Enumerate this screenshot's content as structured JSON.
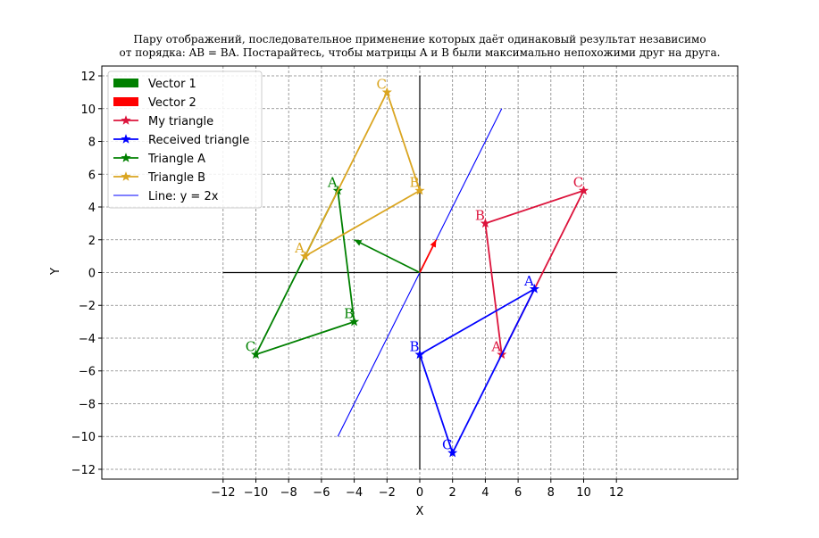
{
  "chart_data": {
    "type": "line",
    "title_lines": [
      "Пару отображений, последовательное применение которых даёт одинаковый результат независимо",
      "от порядка: AB = BA. Постарайтесь, чтобы матрицы A и B были максимально непохожими друг на друга."
    ],
    "xlabel": "X",
    "ylabel": "Y",
    "xlim": [
      -19.4,
      19.4
    ],
    "ylim": [
      -12.6,
      12.6
    ],
    "xticks": [
      -12,
      -10,
      -8,
      -6,
      -4,
      -2,
      0,
      2,
      4,
      6,
      8,
      10,
      12
    ],
    "yticks": [
      -12,
      -10,
      -8,
      -6,
      -4,
      -2,
      0,
      2,
      4,
      6,
      8,
      10,
      12
    ],
    "grid": true,
    "legend_position": "top-left",
    "axes_cross": {
      "x_from": -12,
      "x_to": 12,
      "y_from": -12,
      "y_to": 12
    },
    "vectors": [
      {
        "name": "Vector 1",
        "color": "#008000",
        "from": [
          0,
          0
        ],
        "to": [
          -4,
          2
        ]
      },
      {
        "name": "Vector 2",
        "color": "#ff0000",
        "from": [
          0,
          0
        ],
        "to": [
          1,
          2
        ]
      }
    ],
    "triangles": [
      {
        "name": "My triangle",
        "color": "#dc143c",
        "points": [
          [
            5,
            -5
          ],
          [
            4,
            3
          ],
          [
            10,
            5
          ]
        ],
        "labels": [
          "A",
          "B",
          "C"
        ]
      },
      {
        "name": "Received triangle",
        "color": "#0000ff",
        "points": [
          [
            7,
            -1
          ],
          [
            0,
            -5
          ],
          [
            2,
            -11
          ]
        ],
        "labels": [
          "A",
          "B",
          "C"
        ]
      },
      {
        "name": "Triangle A",
        "color": "#008000",
        "points": [
          [
            -5,
            5
          ],
          [
            -4,
            -3
          ],
          [
            -10,
            -5
          ]
        ],
        "labels": [
          "A",
          "B",
          "C"
        ]
      },
      {
        "name": "Triangle B",
        "color": "#daa520",
        "points": [
          [
            -7,
            1
          ],
          [
            0,
            5
          ],
          [
            -2,
            11
          ]
        ],
        "labels": [
          "A",
          "B",
          "C"
        ]
      }
    ],
    "line": {
      "name": "Line: y = 2x",
      "color": "#0000ff",
      "from": [
        -5,
        -10
      ],
      "to": [
        5,
        10
      ]
    },
    "legend": [
      "Vector 1",
      "Vector 2",
      "My triangle",
      "Received triangle",
      "Triangle A",
      "Triangle B",
      "Line: y = 2x"
    ]
  }
}
